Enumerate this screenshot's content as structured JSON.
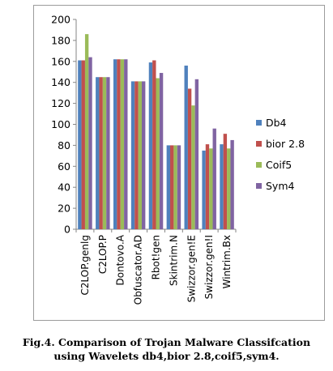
{
  "chart_data": {
    "type": "bar",
    "categories": [
      "C2LOP.genlg",
      "C2LOP.P",
      "Dontovo.A",
      "Obfuscator.AD",
      "Rbot!gen",
      "Skintrim.N",
      "Swizzor.gen!E",
      "Swizzor.gen!I",
      "Wintrim.Bx"
    ],
    "series": [
      {
        "name": "Db4",
        "color": "#4f81bd",
        "values": [
          161,
          145,
          162,
          141,
          159,
          80,
          156,
          75,
          81
        ]
      },
      {
        "name": "bior 2.8",
        "color": "#c0504d",
        "values": [
          161,
          145,
          162,
          141,
          161,
          80,
          134,
          81,
          91
        ]
      },
      {
        "name": "Coif5",
        "color": "#9bbb59",
        "values": [
          186,
          145,
          162,
          141,
          144,
          80,
          118,
          77,
          77
        ]
      },
      {
        "name": "Sym4",
        "color": "#8064a2",
        "values": [
          164,
          145,
          162,
          141,
          149,
          80,
          143,
          96,
          85
        ]
      }
    ],
    "ylim": [
      0,
      200
    ],
    "yticks": [
      0,
      20,
      40,
      60,
      80,
      100,
      120,
      140,
      160,
      180,
      200
    ],
    "grid": false,
    "legend": "right",
    "title": "",
    "xlabel": "",
    "ylabel": ""
  },
  "caption": {
    "line1": "Fig.4. Comparison of Trojan Malware Classifcation",
    "line2": "using Wavelets db4,bior 2.8,coif5,sym4."
  }
}
